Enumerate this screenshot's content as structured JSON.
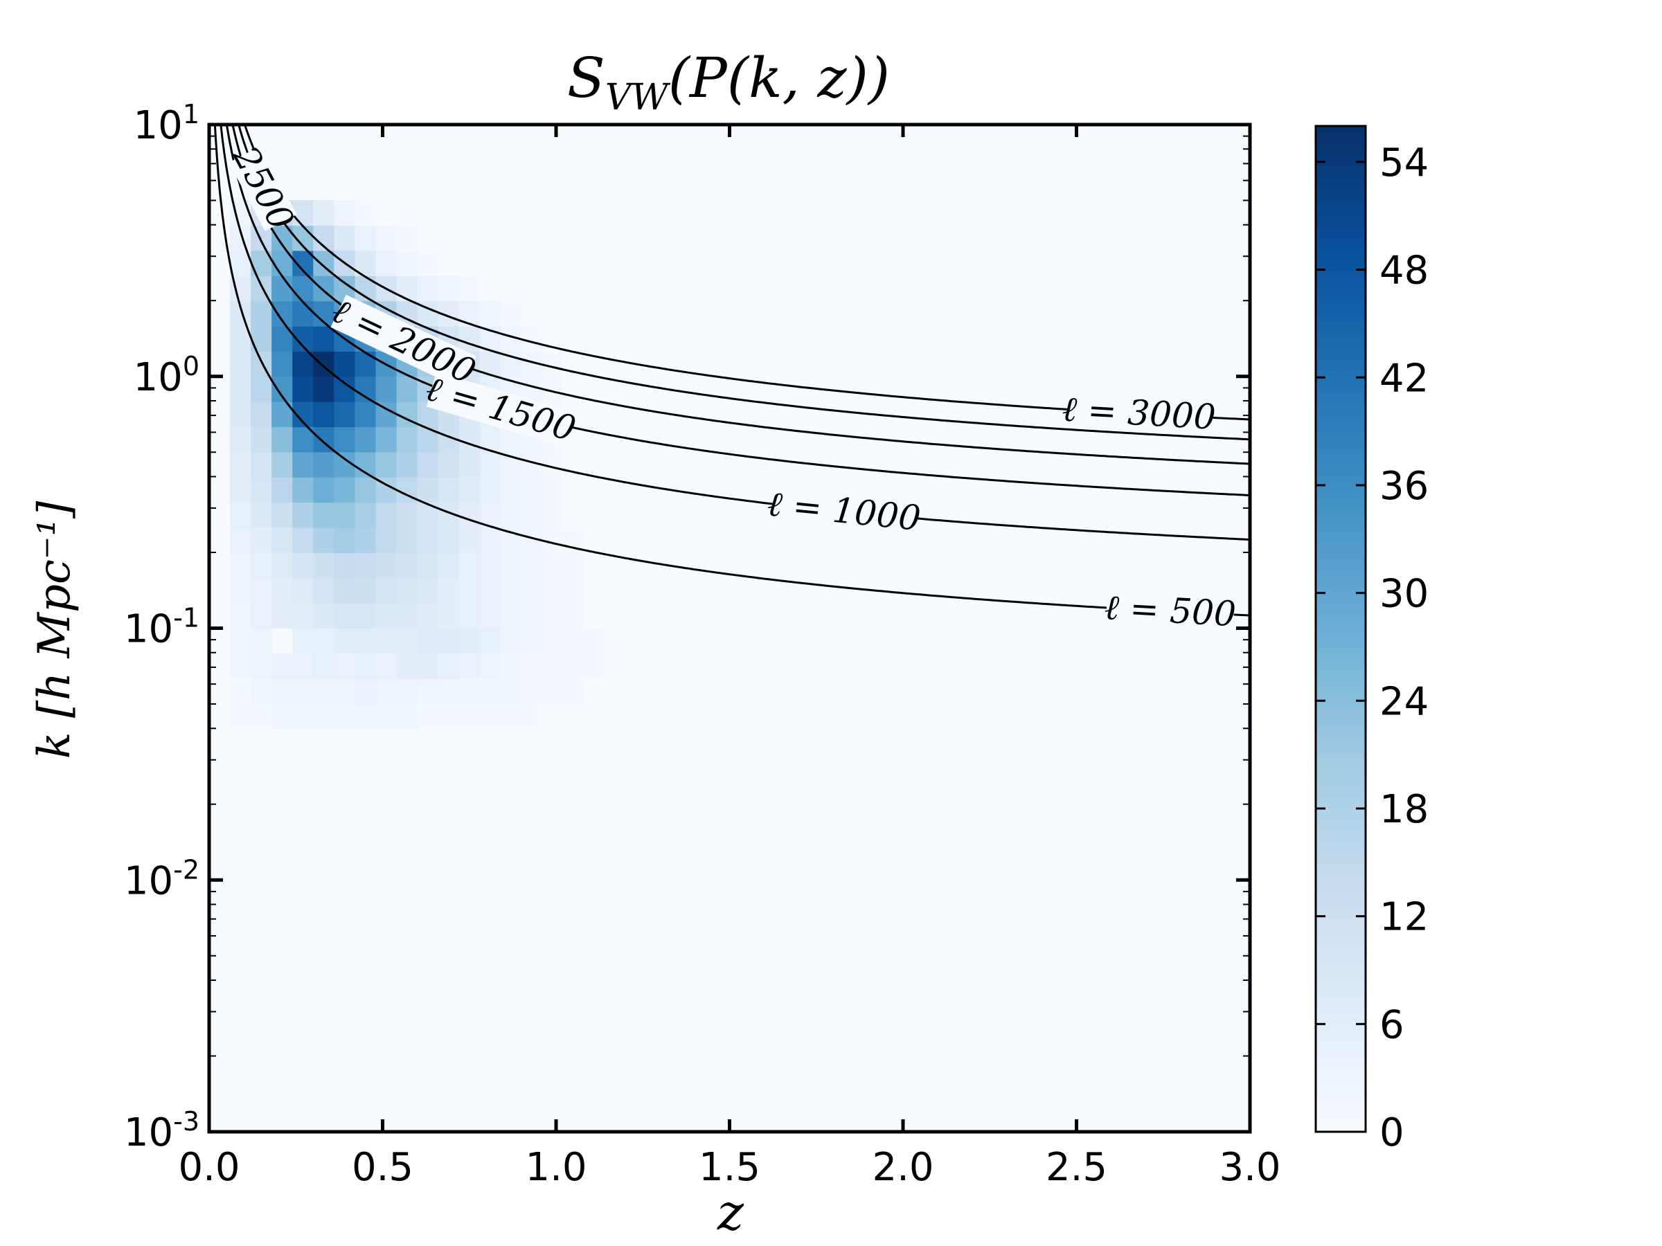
{
  "chart_data": {
    "type": "heatmap",
    "title_main": "S",
    "title_sub": "VW",
    "title_rest": "(P(k, z))",
    "xlabel": "z",
    "ylabel": "k [h Mpc⁻¹]",
    "x_range": [
      0.0,
      3.0
    ],
    "y_range_log10": [
      -3,
      1
    ],
    "x_ticks": [
      "0.0",
      "0.5",
      "1.0",
      "1.5",
      "2.0",
      "2.5",
      "3.0"
    ],
    "y_ticks": [
      {
        "base": "10",
        "exp": "1"
      },
      {
        "base": "10",
        "exp": "0"
      },
      {
        "base": "10",
        "exp": "-1"
      },
      {
        "base": "10",
        "exp": "-2"
      },
      {
        "base": "10",
        "exp": "-3"
      }
    ],
    "colorbar": {
      "range": [
        0,
        56
      ],
      "ticks": [
        "0",
        "6",
        "12",
        "18",
        "24",
        "30",
        "36",
        "42",
        "48",
        "54"
      ],
      "colormap": [
        "#f7fbff",
        "#deebf7",
        "#c6dbef",
        "#9ecae1",
        "#6baed6",
        "#4292c6",
        "#2171b5",
        "#08519c",
        "#08306b"
      ]
    },
    "grid": {
      "z_edges": [
        0.06,
        0.12,
        0.18,
        0.24,
        0.3,
        0.36,
        0.42,
        0.48,
        0.54,
        0.6,
        0.66,
        0.72,
        0.78,
        0.84,
        0.9,
        0.96,
        1.02,
        1.08,
        1.14,
        1.2
      ],
      "log10k_edges": [
        -1.4,
        -1.3,
        -1.2,
        -1.1,
        -1.0,
        -0.9,
        -0.8,
        -0.7,
        -0.6,
        -0.5,
        -0.4,
        -0.3,
        -0.2,
        -0.1,
        0.0,
        0.1,
        0.2,
        0.3,
        0.4,
        0.5,
        0.6,
        0.7
      ],
      "values_note": "rows from low k to high k; columns from low z to high z",
      "values": [
        [
          1,
          1,
          2,
          2,
          2,
          2,
          2,
          2,
          2,
          1,
          1,
          1,
          1,
          1,
          1,
          0,
          0,
          0,
          0
        ],
        [
          1,
          2,
          3,
          3,
          3,
          3,
          4,
          3,
          3,
          2,
          2,
          2,
          2,
          2,
          1,
          1,
          1,
          0,
          0
        ],
        [
          2,
          3,
          4,
          4,
          5,
          4,
          5,
          4,
          6,
          6,
          5,
          4,
          3,
          2,
          1,
          1,
          1,
          1,
          0
        ],
        [
          2,
          3,
          0,
          5,
          5,
          6,
          6,
          6,
          6,
          7,
          7,
          6,
          5,
          3,
          2,
          1,
          1,
          1,
          0
        ],
        [
          2,
          4,
          6,
          6,
          8,
          9,
          9,
          8,
          8,
          7,
          6,
          5,
          4,
          3,
          2,
          1,
          1,
          0,
          0
        ],
        [
          3,
          4,
          6,
          7,
          10,
          12,
          12,
          10,
          9,
          8,
          6,
          5,
          4,
          3,
          2,
          1,
          1,
          0,
          0
        ],
        [
          3,
          5,
          7,
          10,
          12,
          14,
          13,
          12,
          11,
          9,
          7,
          5,
          4,
          3,
          2,
          1,
          1,
          0,
          0
        ],
        [
          4,
          6,
          9,
          14,
          18,
          20,
          18,
          15,
          12,
          10,
          8,
          6,
          4,
          3,
          2,
          1,
          1,
          0,
          0
        ],
        [
          5,
          8,
          12,
          18,
          22,
          22,
          19,
          15,
          12,
          10,
          8,
          6,
          4,
          3,
          2,
          1,
          0,
          0,
          0
        ],
        [
          6,
          9,
          16,
          24,
          28,
          26,
          22,
          18,
          15,
          12,
          9,
          7,
          5,
          3,
          2,
          1,
          0,
          0,
          0
        ],
        [
          6,
          10,
          20,
          30,
          32,
          30,
          26,
          22,
          18,
          14,
          11,
          8,
          5,
          3,
          2,
          1,
          0,
          0,
          0
        ],
        [
          7,
          12,
          24,
          36,
          40,
          36,
          32,
          26,
          20,
          16,
          12,
          8,
          5,
          3,
          2,
          1,
          0,
          0,
          0
        ],
        [
          8,
          14,
          30,
          45,
          48,
          44,
          38,
          30,
          22,
          16,
          12,
          8,
          5,
          3,
          2,
          1,
          0,
          0,
          0
        ],
        [
          8,
          16,
          34,
          50,
          54,
          48,
          40,
          32,
          24,
          18,
          13,
          9,
          5,
          3,
          2,
          1,
          0,
          0,
          0
        ],
        [
          8,
          16,
          36,
          52,
          56,
          50,
          44,
          34,
          26,
          20,
          14,
          10,
          6,
          4,
          2,
          1,
          0,
          0,
          0
        ],
        [
          8,
          18,
          38,
          46,
          48,
          42,
          36,
          28,
          20,
          15,
          10,
          7,
          4,
          2,
          1,
          0,
          0,
          0,
          0
        ],
        [
          8,
          18,
          36,
          40,
          38,
          32,
          24,
          18,
          12,
          8,
          6,
          4,
          2,
          1,
          0,
          0,
          0,
          0,
          0
        ],
        [
          6,
          16,
          32,
          36,
          30,
          24,
          16,
          10,
          6,
          4,
          2,
          1,
          0,
          0,
          0,
          0,
          0,
          0,
          0
        ],
        [
          5,
          20,
          28,
          42,
          24,
          14,
          8,
          4,
          2,
          1,
          0,
          0,
          0,
          0,
          0,
          0,
          0,
          0,
          0
        ],
        [
          4,
          14,
          26,
          22,
          14,
          8,
          4,
          2,
          1,
          0,
          0,
          0,
          0,
          0,
          0,
          0,
          0,
          0,
          0
        ],
        [
          3,
          10,
          14,
          10,
          6,
          3,
          1,
          0,
          0,
          0,
          0,
          0,
          0,
          0,
          0,
          0,
          0,
          0,
          0
        ]
      ]
    },
    "contours": [
      {
        "ell": 500,
        "label": "ℓ = 500",
        "label_z": 2.77
      },
      {
        "ell": 1000,
        "label": "ℓ = 1000",
        "label_z": 1.83
      },
      {
        "ell": 1500,
        "label": "ℓ = 1500",
        "label_z": 0.84
      },
      {
        "ell": 2000,
        "label": "ℓ = 2000",
        "label_z": 0.56
      },
      {
        "ell": 2500,
        "label": "2500",
        "label_z": 0.155
      },
      {
        "ell": 3000,
        "label": "ℓ = 3000",
        "label_z": 2.68
      }
    ]
  }
}
